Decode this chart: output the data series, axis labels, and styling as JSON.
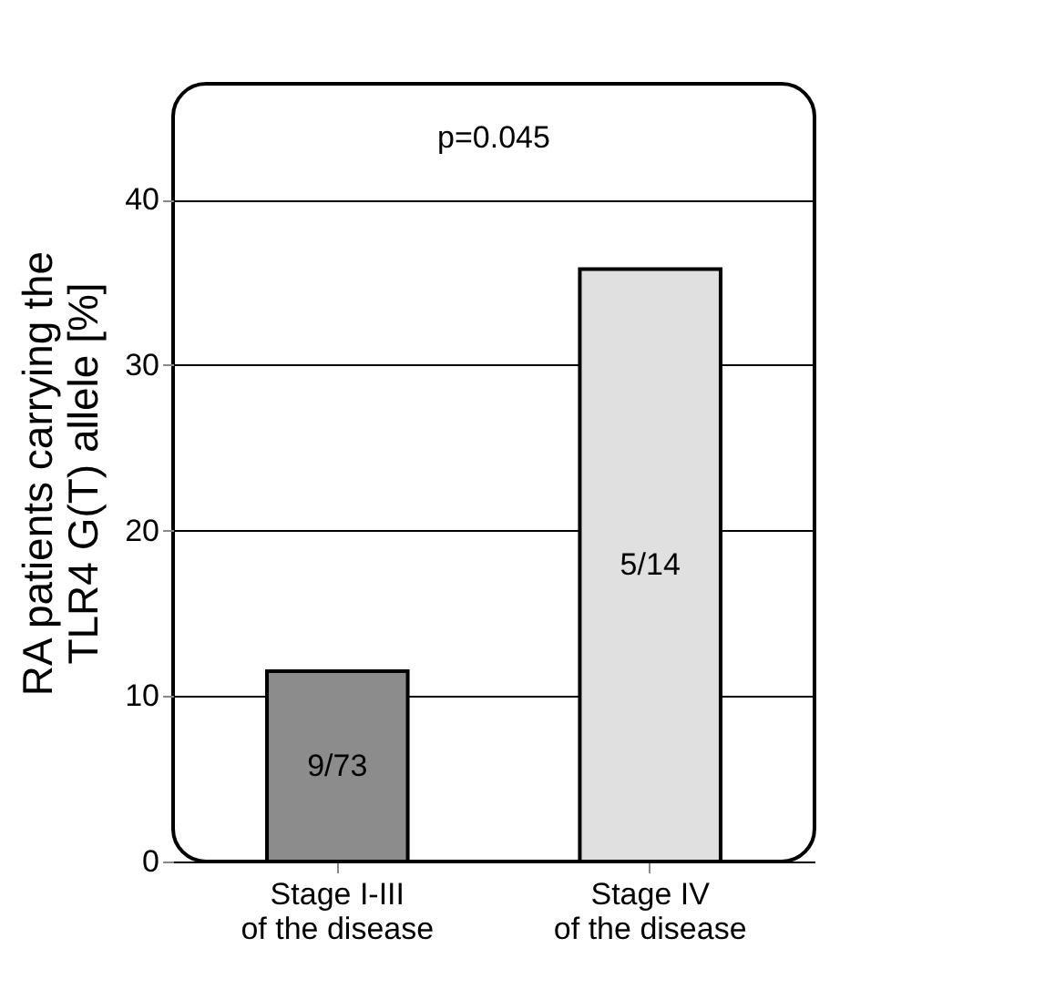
{
  "chart_data": {
    "type": "bar",
    "ylabel": "RA patients carrying the TLR4 G(T) allele [%]",
    "categories": [
      "Stage I-III of the disease",
      "Stage IV of the disease"
    ],
    "values": [
      11.5,
      35.8
    ],
    "colors": [
      "#8c8c8c",
      "#e0e0e0"
    ],
    "value_labels": [
      "9/73",
      "5/14"
    ],
    "ylim": [
      0,
      47
    ],
    "yticks": [
      0,
      10,
      20,
      30,
      40
    ],
    "grid": "y",
    "annotations": [
      "p=0.045"
    ]
  }
}
